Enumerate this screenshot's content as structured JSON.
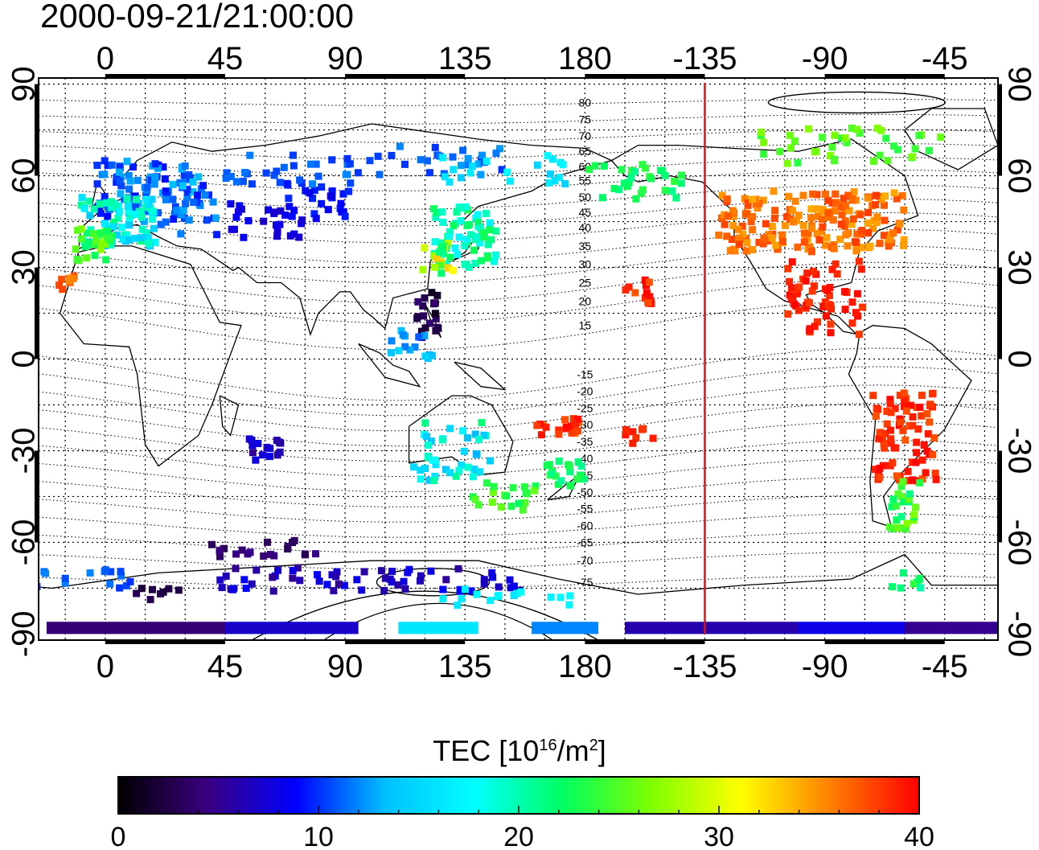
{
  "title": "2000-09-21/21:00:00",
  "map": {
    "lon_ticks_top": [
      "0",
      "45",
      "90",
      "135",
      "180",
      "-135",
      "-90",
      "-45"
    ],
    "lon_ticks_bottom": [
      "0",
      "45",
      "90",
      "135",
      "180",
      "-135",
      "-90",
      "-45"
    ],
    "lat_ticks_left": [
      "90",
      "60",
      "30",
      "0",
      "-30",
      "-60",
      "-90"
    ],
    "lat_ticks_right": [
      "90",
      "60",
      "30",
      "0",
      "-30",
      "-60",
      "-90"
    ],
    "lon_tick_values": [
      0,
      45,
      90,
      135,
      180,
      225,
      270,
      315
    ],
    "lat_tick_values": [
      90,
      60,
      30,
      0,
      -30,
      -60,
      -90
    ],
    "lon_range": [
      -25,
      335
    ],
    "lat_range": [
      -92,
      92
    ],
    "contour_labels": [
      {
        "text": "80",
        "lat": 84
      },
      {
        "text": "75",
        "lat": 78.5
      },
      {
        "text": "70",
        "lat": 73
      },
      {
        "text": "65",
        "lat": 68
      },
      {
        "text": "60",
        "lat": 63
      },
      {
        "text": "55",
        "lat": 58.5
      },
      {
        "text": "50",
        "lat": 53
      },
      {
        "text": "45",
        "lat": 48
      },
      {
        "text": "40",
        "lat": 43
      },
      {
        "text": "35",
        "lat": 37
      },
      {
        "text": "30",
        "lat": 31
      },
      {
        "text": "25",
        "lat": 25
      },
      {
        "text": "20",
        "lat": 19
      },
      {
        "text": "15",
        "lat": 11
      },
      {
        "text": "-15",
        "lat": -5
      },
      {
        "text": "-20",
        "lat": -10.5
      },
      {
        "text": "-25",
        "lat": -16
      },
      {
        "text": "-30",
        "lat": -21.5
      },
      {
        "text": "-35",
        "lat": -27
      },
      {
        "text": "-40",
        "lat": -32.5
      },
      {
        "text": "-45",
        "lat": -38
      },
      {
        "text": "-50",
        "lat": -43.5
      },
      {
        "text": "-55",
        "lat": -49
      },
      {
        "text": "-60",
        "lat": -54.5
      },
      {
        "text": "-65",
        "lat": -60
      },
      {
        "text": "-70",
        "lat": -66
      },
      {
        "text": "-75",
        "lat": -73
      }
    ],
    "contour_label_lon": 180,
    "terminator_lon": 225,
    "terminator_color": "#e01010"
  },
  "colorbar": {
    "label_main": "TEC  [10",
    "label_sup1": "16",
    "label_mid": "/m",
    "label_sup2": "2",
    "label_end": "]",
    "ticks": [
      "0",
      "10",
      "20",
      "30",
      "40"
    ],
    "tick_values": [
      0,
      10,
      20,
      30,
      40
    ],
    "range": [
      0,
      40
    ],
    "colors": [
      "#000000",
      "#3a0080",
      "#0000ff",
      "#00c0ff",
      "#00ffff",
      "#00ff60",
      "#80ff00",
      "#ffff00",
      "#ff8000",
      "#ff0000"
    ]
  }
}
